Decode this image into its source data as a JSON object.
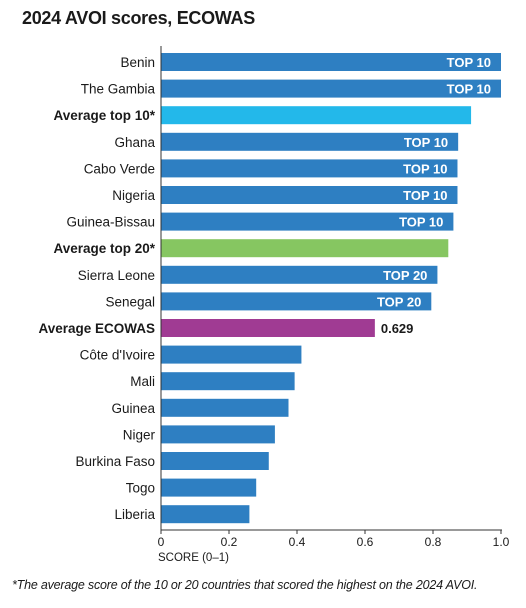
{
  "chart_data": {
    "type": "bar",
    "orientation": "horizontal",
    "title": "2024 AVOI scores, ECOWAS",
    "xlabel": "SCORE (0–1)",
    "xlim": [
      0,
      1.0
    ],
    "xticks": [
      "0",
      "0.2",
      "0.4",
      "0.6",
      "0.8",
      "1.0"
    ],
    "xtick_values": [
      0,
      0.2,
      0.4,
      0.6,
      0.8,
      1.0
    ],
    "grid": false,
    "categories": [
      "Benin",
      "The Gambia",
      "Average top 10*",
      "Ghana",
      "Cabo Verde",
      "Nigeria",
      "Guinea-Bissau",
      "Average top 20*",
      "Sierra Leone",
      "Senegal",
      "Average ECOWAS",
      "Côte d'Ivoire",
      "Mali",
      "Guinea",
      "Niger",
      "Burkina Faso",
      "Togo",
      "Liberia"
    ],
    "values": [
      1.0,
      1.0,
      0.912,
      0.874,
      0.872,
      0.872,
      0.86,
      0.845,
      0.813,
      0.795,
      0.629,
      0.413,
      0.393,
      0.375,
      0.335,
      0.317,
      0.28,
      0.26
    ],
    "bar_labels": [
      "TOP 10",
      "TOP 10",
      "",
      "TOP 10",
      "TOP 10",
      "TOP 10",
      "TOP 10",
      "",
      "TOP 20",
      "TOP 20",
      "",
      "",
      "",
      "",
      "",
      "",
      "",
      ""
    ],
    "value_labels": [
      "",
      "",
      "",
      "",
      "",
      "",
      "",
      "",
      "",
      "",
      "0.629",
      "",
      "",
      "",
      "",
      "",
      "",
      ""
    ],
    "bold_categories": [
      "Average top 10*",
      "Average top 20*",
      "Average ECOWAS"
    ],
    "colors": {
      "country": "#2e7fc2",
      "Average top 10*": "#23b8ea",
      "Average top 20*": "#86c661",
      "Average ECOWAS": "#a03b93",
      "bar_label": "#ffffff"
    }
  },
  "footnote": "*The average score of the 10 or 20 countries that scored the highest on the 2024 AVOI."
}
